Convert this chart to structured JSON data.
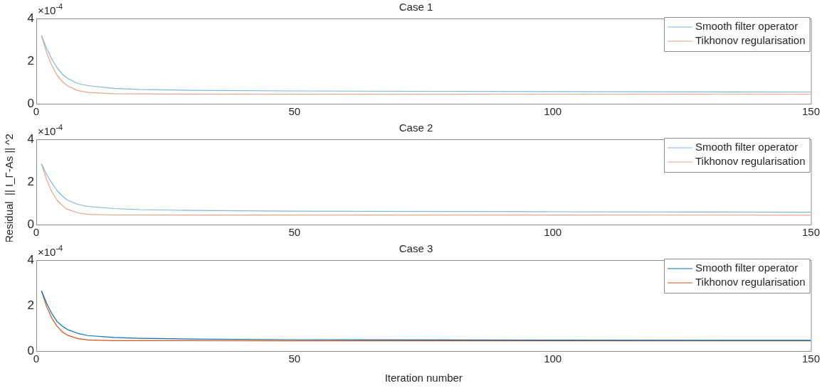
{
  "chart_data": [
    {
      "type": "line",
      "title": "Case 1",
      "annotations": [
        "×10$^{-4}$"
      ],
      "xlim": [
        0,
        150
      ],
      "xticks": [
        0,
        50,
        100,
        150
      ],
      "ylim": [
        0,
        4
      ],
      "yticks": [
        0,
        2,
        4
      ],
      "grid": false,
      "legend": "top right",
      "marker": "none",
      "series": [
        {
          "name": "Smooth filter operator",
          "color": "#7fb8da",
          "x": [
            1,
            2,
            3,
            4,
            5,
            6,
            8,
            10,
            15,
            20,
            30,
            50,
            100,
            150
          ],
          "values": [
            3.2,
            2.6,
            2.1,
            1.7,
            1.4,
            1.2,
            0.95,
            0.85,
            0.72,
            0.67,
            0.63,
            0.6,
            0.57,
            0.55
          ]
        },
        {
          "name": "Tikhonov regularisation",
          "color": "#e8a58a",
          "x": [
            1,
            2,
            3,
            4,
            5,
            6,
            8,
            10,
            15,
            20,
            50,
            150
          ],
          "values": [
            3.2,
            2.4,
            1.8,
            1.35,
            1.05,
            0.85,
            0.62,
            0.53,
            0.47,
            0.46,
            0.45,
            0.45
          ]
        }
      ]
    },
    {
      "type": "line",
      "title": "Case 2",
      "ylabel": "Residual  || I_Γ-As || ^2",
      "annotations": [
        "×10$^{-4}$"
      ],
      "xlim": [
        0,
        150
      ],
      "xticks": [
        0,
        50,
        100,
        150
      ],
      "ylim": [
        0,
        4
      ],
      "yticks": [
        0,
        2,
        4
      ],
      "grid": false,
      "legend": "top right",
      "marker": "none",
      "series": [
        {
          "name": "Smooth filter operator",
          "color": "#7fb8da",
          "x": [
            1,
            2,
            3,
            4,
            5,
            6,
            8,
            10,
            15,
            20,
            30,
            50,
            100,
            150
          ],
          "values": [
            2.85,
            2.35,
            1.95,
            1.6,
            1.35,
            1.15,
            0.95,
            0.85,
            0.75,
            0.7,
            0.66,
            0.63,
            0.6,
            0.58
          ]
        },
        {
          "name": "Tikhonov regularisation",
          "color": "#e8a58a",
          "x": [
            1,
            2,
            3,
            4,
            5,
            6,
            8,
            10,
            15,
            150
          ],
          "values": [
            2.85,
            2.1,
            1.55,
            1.15,
            0.9,
            0.72,
            0.55,
            0.48,
            0.45,
            0.44
          ]
        }
      ]
    },
    {
      "type": "line",
      "title": "Case 3",
      "xlabel": "Iteration number",
      "annotations": [
        "×10$^{-4}$"
      ],
      "xlim": [
        0,
        150
      ],
      "xticks": [
        0,
        50,
        100,
        150
      ],
      "ylim": [
        0,
        4
      ],
      "yticks": [
        0,
        2,
        4
      ],
      "grid": false,
      "legend": "top right",
      "marker": "none",
      "series": [
        {
          "name": "Smooth filter operator",
          "color": "#0072bd",
          "x": [
            1,
            2,
            3,
            4,
            5,
            6,
            8,
            10,
            15,
            20,
            30,
            50,
            100,
            150
          ],
          "values": [
            2.65,
            2.1,
            1.65,
            1.3,
            1.1,
            0.95,
            0.78,
            0.68,
            0.6,
            0.56,
            0.53,
            0.5,
            0.48,
            0.47
          ]
        },
        {
          "name": "Tikhonov regularisation",
          "color": "#d95319",
          "x": [
            1,
            2,
            3,
            4,
            5,
            6,
            8,
            10,
            15,
            50,
            150
          ],
          "values": [
            2.65,
            1.95,
            1.45,
            1.1,
            0.85,
            0.7,
            0.55,
            0.49,
            0.46,
            0.45,
            0.45
          ]
        }
      ]
    }
  ]
}
